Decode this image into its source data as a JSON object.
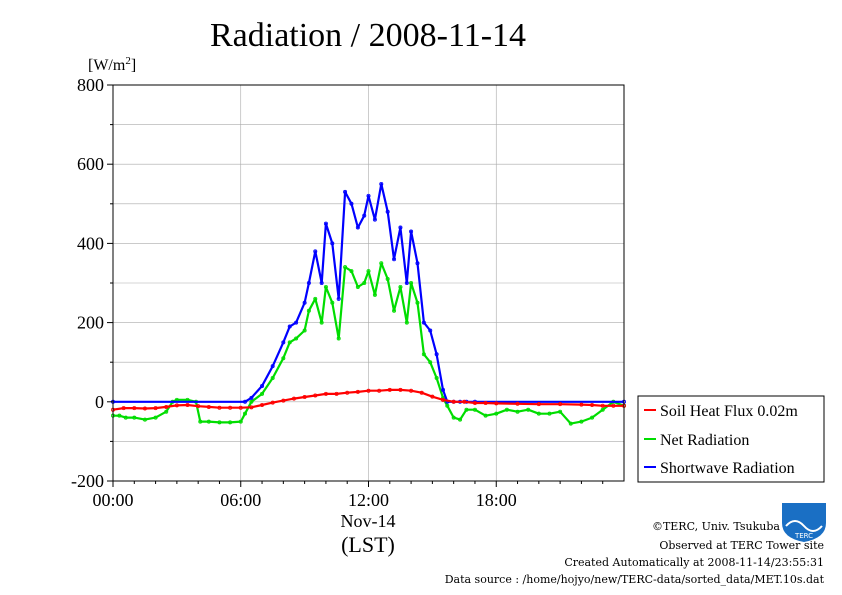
{
  "chart_data": {
    "type": "line",
    "title": "Radiation / 2008-11-14",
    "unit_label": "[W/m",
    "unit_sup": "2",
    "unit_close": "]",
    "ylim": [
      -200,
      800
    ],
    "xlim": [
      0,
      24
    ],
    "y_ticks": [
      -200,
      0,
      200,
      400,
      600,
      800
    ],
    "x_ticks": [
      {
        "value": 0,
        "label": "00:00"
      },
      {
        "value": 6,
        "label": "06:00"
      },
      {
        "value": 12,
        "label": "12:00"
      },
      {
        "value": 18,
        "label": "18:00"
      }
    ],
    "x_date_label": "Nov-14",
    "x_axis_label": "(LST)",
    "grid": true,
    "legend_position": "right",
    "series": [
      {
        "name": "Soil Heat Flux 0.02m",
        "color": "#ff0000",
        "x": [
          0,
          0.5,
          1,
          1.5,
          2,
          2.5,
          3,
          3.5,
          4,
          4.5,
          5,
          5.5,
          6,
          6.5,
          7,
          7.5,
          8,
          8.5,
          9,
          9.5,
          10,
          10.5,
          11,
          11.5,
          12,
          12.5,
          13,
          13.5,
          14,
          14.5,
          15,
          15.5,
          16,
          16.5,
          17,
          17.5,
          18,
          19,
          20,
          21,
          22,
          22.5,
          23,
          23.5,
          24
        ],
        "y": [
          -20,
          -16,
          -16,
          -17,
          -16,
          -13,
          -9,
          -8,
          -11,
          -13,
          -15,
          -15,
          -15,
          -14,
          -8,
          -2,
          3,
          8,
          12,
          16,
          20,
          20,
          23,
          25,
          28,
          28,
          30,
          30,
          28,
          23,
          13,
          5,
          0,
          0,
          -3,
          -3,
          -4,
          -5,
          -6,
          -6,
          -7,
          -8,
          -10,
          -10,
          -10
        ]
      },
      {
        "name": "Net Radiation",
        "color": "#00dd00",
        "x": [
          0,
          0.3,
          0.6,
          1,
          1.5,
          2,
          2.5,
          2.8,
          3,
          3.5,
          3.9,
          4.1,
          4.5,
          5,
          5.5,
          6,
          6.2,
          6.5,
          7,
          7.5,
          8,
          8.3,
          8.6,
          9,
          9.2,
          9.5,
          9.8,
          10,
          10.3,
          10.6,
          10.9,
          11.2,
          11.5,
          11.8,
          12,
          12.3,
          12.6,
          12.9,
          13.2,
          13.5,
          13.8,
          14,
          14.3,
          14.6,
          14.9,
          15.2,
          15.5,
          15.7,
          16,
          16.3,
          16.6,
          17,
          17.5,
          18,
          18.5,
          19,
          19.5,
          20,
          20.5,
          21,
          21.5,
          22,
          22.5,
          23,
          23.5,
          24
        ],
        "y": [
          -35,
          -35,
          -40,
          -40,
          -45,
          -40,
          -25,
          0,
          5,
          5,
          0,
          -50,
          -50,
          -52,
          -52,
          -50,
          -30,
          0,
          20,
          60,
          110,
          150,
          160,
          180,
          230,
          260,
          200,
          290,
          250,
          160,
          340,
          330,
          290,
          300,
          330,
          270,
          350,
          310,
          230,
          290,
          200,
          300,
          250,
          120,
          100,
          60,
          10,
          -10,
          -40,
          -45,
          -20,
          -20,
          -35,
          -30,
          -20,
          -25,
          -20,
          -30,
          -30,
          -25,
          -55,
          -50,
          -40,
          -20,
          0,
          -10
        ]
      },
      {
        "name": "Shortwave Radiation",
        "color": "#0000ff",
        "x": [
          0,
          6.2,
          6.5,
          7,
          7.5,
          8,
          8.3,
          8.6,
          9,
          9.2,
          9.5,
          9.8,
          10,
          10.3,
          10.6,
          10.9,
          11.2,
          11.5,
          11.8,
          12,
          12.3,
          12.6,
          12.9,
          13.2,
          13.5,
          13.8,
          14,
          14.3,
          14.6,
          14.9,
          15.2,
          15.5,
          15.7,
          16,
          16.3,
          16.6,
          17,
          24
        ],
        "y": [
          0,
          0,
          10,
          40,
          90,
          150,
          190,
          200,
          250,
          300,
          380,
          300,
          450,
          400,
          260,
          530,
          500,
          440,
          470,
          520,
          460,
          550,
          480,
          360,
          440,
          300,
          430,
          350,
          200,
          180,
          120,
          30,
          0,
          0,
          0,
          0,
          0,
          0
        ]
      }
    ]
  },
  "credits": {
    "copyright": "©TERC, Univ. Tsukuba",
    "observed": "Observed at TERC Tower site",
    "created": "Created Automatically at 2008-11-14/23:55:31",
    "source": "Data source : /home/hojyo/new/TERC-data/sorted_data/MET.10s.dat",
    "logo_text": "TERC"
  }
}
